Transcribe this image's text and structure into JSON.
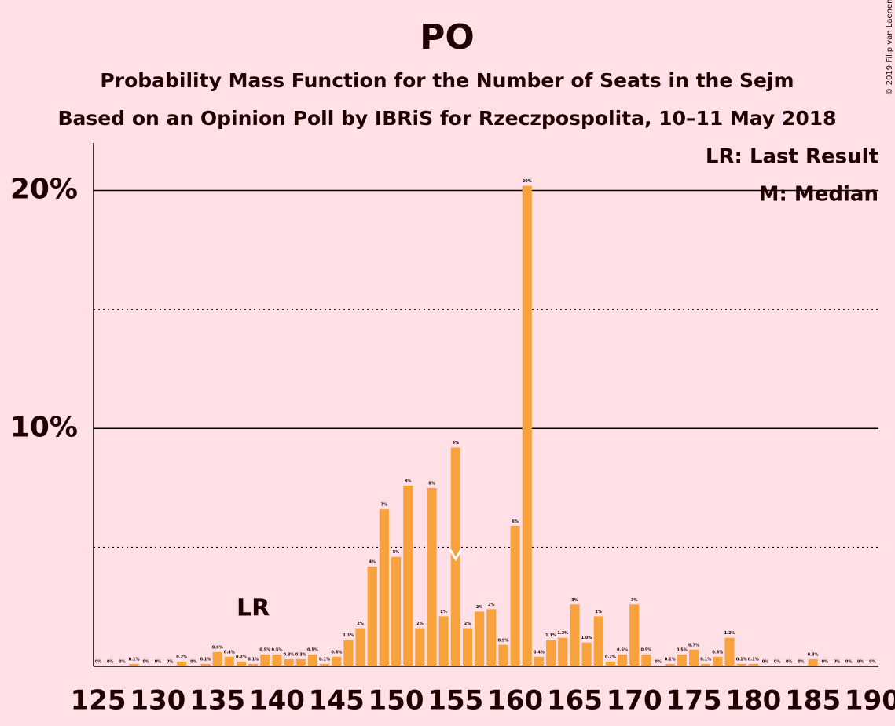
{
  "chart_data": {
    "type": "bar",
    "title": "PO",
    "subtitle": [
      "Probability Mass Function for the Number of Seats in the Sejm",
      "Based on an Opinion Poll by IBRiS for Rzeczpospolita, 10–11 May 2018"
    ],
    "copyright": "© 2019 Filip van Laenen",
    "legend": [
      "LR: Last Result",
      "M: Median"
    ],
    "color": "#f7a23c",
    "x": [
      125,
      126,
      127,
      128,
      129,
      130,
      131,
      132,
      133,
      134,
      135,
      136,
      137,
      138,
      139,
      140,
      141,
      142,
      143,
      144,
      145,
      146,
      147,
      148,
      149,
      150,
      151,
      152,
      153,
      154,
      155,
      156,
      157,
      158,
      159,
      160,
      161,
      162,
      163,
      164,
      165,
      166,
      167,
      168,
      169,
      170,
      171,
      172,
      173,
      174,
      175,
      176,
      177,
      178,
      179,
      180,
      181,
      182,
      183,
      184,
      185,
      186,
      187,
      188,
      189,
      190
    ],
    "values": [
      0,
      0,
      0,
      0.1,
      0,
      0,
      0,
      0.2,
      0,
      0.1,
      0.6,
      0.4,
      0.2,
      0.1,
      0.5,
      0.5,
      0.3,
      0.3,
      0.5,
      0.1,
      0.4,
      1.1,
      1.6,
      4.2,
      6.6,
      4.6,
      7.6,
      1.6,
      7.5,
      2.1,
      9.2,
      1.6,
      2.3,
      2.4,
      0.9,
      5.9,
      20.2,
      0.4,
      1.1,
      1.2,
      2.6,
      1.0,
      2.1,
      0.2,
      0.5,
      2.6,
      0.5,
      0,
      0.1,
      0.5,
      0.7,
      0.1,
      0.4,
      1.2,
      0.1,
      0.1,
      0,
      0,
      0,
      0,
      0.3,
      0,
      0,
      0,
      0,
      0
    ],
    "value_labels": [
      "0%",
      "0%",
      "0%",
      "0.1%",
      "0%",
      "0%",
      "0%",
      "0.2%",
      "0%",
      "0.1%",
      "0.6%",
      "0.4%",
      "0.2%",
      "0.1%",
      "0.5%",
      "0.5%",
      "0.3%",
      "0.3%",
      "0.5%",
      "0.1%",
      "0.4%",
      "1.1%",
      "2%",
      "4%",
      "7%",
      "5%",
      "8%",
      "2%",
      "8%",
      "2%",
      "9%",
      "2%",
      "2%",
      "2%",
      "0.9%",
      "6%",
      "20%",
      "0.4%",
      "1.1%",
      "1.2%",
      "3%",
      "1.0%",
      "2%",
      "0.2%",
      "0.5%",
      "3%",
      "0.5%",
      "0%",
      "0.1%",
      "0.5%",
      "0.7%",
      "0.1%",
      "0.4%",
      "1.2%",
      "0.1%",
      "0.1%",
      "0%",
      "0%",
      "0%",
      "0%",
      "0.3%",
      "0%",
      "0%",
      "0%",
      "0%",
      "0%"
    ],
    "xlim": [
      124.6,
      190.5
    ],
    "xticks": [
      125,
      130,
      135,
      140,
      145,
      150,
      155,
      160,
      165,
      170,
      175,
      180,
      185,
      190
    ],
    "ylim": [
      0,
      22
    ],
    "yticks": [
      {
        "value": 10,
        "label": "10%"
      },
      {
        "value": 20,
        "label": "20%"
      }
    ],
    "minor_gridlines": [
      5,
      15
    ],
    "last_result": 138,
    "last_result_label": "LR",
    "median": 155
  }
}
